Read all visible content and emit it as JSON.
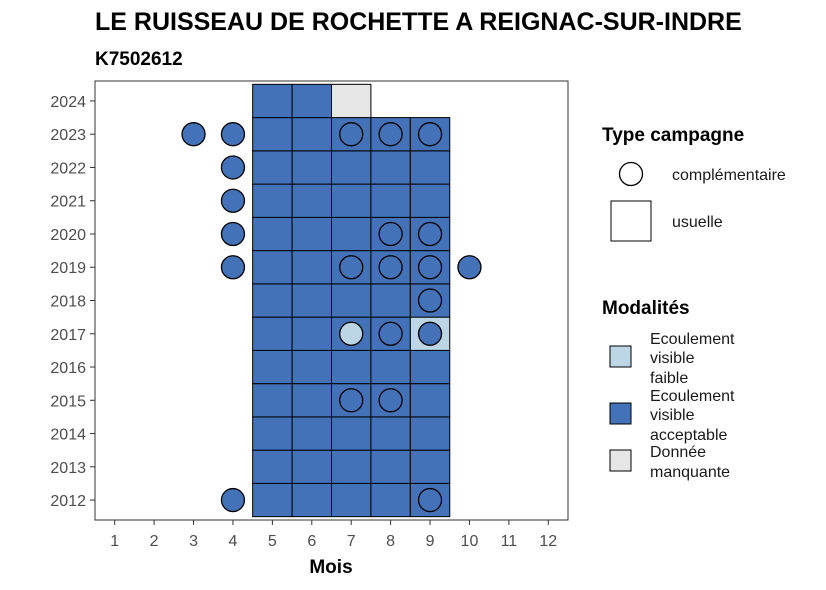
{
  "chart_data": {
    "type": "heatmap",
    "title": "LE RUISSEAU DE ROCHETTE A REIGNAC-SUR-INDRE",
    "subtitle": "K7502612",
    "xlabel": "Mois",
    "ylabel": "",
    "x_ticks": [
      1,
      2,
      3,
      4,
      5,
      6,
      7,
      8,
      9,
      10,
      11,
      12
    ],
    "y_ticks": [
      2012,
      2013,
      2014,
      2015,
      2016,
      2017,
      2018,
      2019,
      2020,
      2021,
      2022,
      2023,
      2024
    ],
    "xlim": [
      0.5,
      12.5
    ],
    "ylim": [
      2011.4,
      2024.6
    ],
    "grid": false,
    "colors": {
      "Ecoulement visible faible": "#bcd6e6",
      "Ecoulement visible acceptable": "#4472b8",
      "Donnée manquante": "#e6e6e6"
    },
    "tiles": [
      {
        "year": 2012,
        "month": 5,
        "modalite": "Ecoulement visible acceptable"
      },
      {
        "year": 2012,
        "month": 6,
        "modalite": "Ecoulement visible acceptable"
      },
      {
        "year": 2012,
        "month": 7,
        "modalite": "Ecoulement visible acceptable"
      },
      {
        "year": 2012,
        "month": 8,
        "modalite": "Ecoulement visible acceptable"
      },
      {
        "year": 2012,
        "month": 9,
        "modalite": "Ecoulement visible acceptable"
      },
      {
        "year": 2013,
        "month": 5,
        "modalite": "Ecoulement visible acceptable"
      },
      {
        "year": 2013,
        "month": 6,
        "modalite": "Ecoulement visible acceptable"
      },
      {
        "year": 2013,
        "month": 7,
        "modalite": "Ecoulement visible acceptable"
      },
      {
        "year": 2013,
        "month": 8,
        "modalite": "Ecoulement visible acceptable"
      },
      {
        "year": 2013,
        "month": 9,
        "modalite": "Ecoulement visible acceptable"
      },
      {
        "year": 2014,
        "month": 5,
        "modalite": "Ecoulement visible acceptable"
      },
      {
        "year": 2014,
        "month": 6,
        "modalite": "Ecoulement visible acceptable"
      },
      {
        "year": 2014,
        "month": 7,
        "modalite": "Ecoulement visible acceptable"
      },
      {
        "year": 2014,
        "month": 8,
        "modalite": "Ecoulement visible acceptable"
      },
      {
        "year": 2014,
        "month": 9,
        "modalite": "Ecoulement visible acceptable"
      },
      {
        "year": 2015,
        "month": 5,
        "modalite": "Ecoulement visible acceptable"
      },
      {
        "year": 2015,
        "month": 6,
        "modalite": "Ecoulement visible acceptable"
      },
      {
        "year": 2015,
        "month": 7,
        "modalite": "Ecoulement visible acceptable"
      },
      {
        "year": 2015,
        "month": 8,
        "modalite": "Ecoulement visible acceptable"
      },
      {
        "year": 2015,
        "month": 9,
        "modalite": "Ecoulement visible acceptable"
      },
      {
        "year": 2016,
        "month": 5,
        "modalite": "Ecoulement visible acceptable"
      },
      {
        "year": 2016,
        "month": 6,
        "modalite": "Ecoulement visible acceptable"
      },
      {
        "year": 2016,
        "month": 7,
        "modalite": "Ecoulement visible acceptable"
      },
      {
        "year": 2016,
        "month": 8,
        "modalite": "Ecoulement visible acceptable"
      },
      {
        "year": 2016,
        "month": 9,
        "modalite": "Ecoulement visible acceptable"
      },
      {
        "year": 2017,
        "month": 5,
        "modalite": "Ecoulement visible acceptable"
      },
      {
        "year": 2017,
        "month": 6,
        "modalite": "Ecoulement visible acceptable"
      },
      {
        "year": 2017,
        "month": 7,
        "modalite": "Ecoulement visible acceptable"
      },
      {
        "year": 2017,
        "month": 8,
        "modalite": "Ecoulement visible acceptable"
      },
      {
        "year": 2017,
        "month": 9,
        "modalite": "Ecoulement visible faible"
      },
      {
        "year": 2018,
        "month": 5,
        "modalite": "Ecoulement visible acceptable"
      },
      {
        "year": 2018,
        "month": 6,
        "modalite": "Ecoulement visible acceptable"
      },
      {
        "year": 2018,
        "month": 7,
        "modalite": "Ecoulement visible acceptable"
      },
      {
        "year": 2018,
        "month": 8,
        "modalite": "Ecoulement visible acceptable"
      },
      {
        "year": 2018,
        "month": 9,
        "modalite": "Ecoulement visible acceptable"
      },
      {
        "year": 2019,
        "month": 5,
        "modalite": "Ecoulement visible acceptable"
      },
      {
        "year": 2019,
        "month": 6,
        "modalite": "Ecoulement visible acceptable"
      },
      {
        "year": 2019,
        "month": 7,
        "modalite": "Ecoulement visible acceptable"
      },
      {
        "year": 2019,
        "month": 8,
        "modalite": "Ecoulement visible acceptable"
      },
      {
        "year": 2019,
        "month": 9,
        "modalite": "Ecoulement visible acceptable"
      },
      {
        "year": 2020,
        "month": 5,
        "modalite": "Ecoulement visible acceptable"
      },
      {
        "year": 2020,
        "month": 6,
        "modalite": "Ecoulement visible acceptable"
      },
      {
        "year": 2020,
        "month": 7,
        "modalite": "Ecoulement visible acceptable"
      },
      {
        "year": 2020,
        "month": 8,
        "modalite": "Ecoulement visible acceptable"
      },
      {
        "year": 2020,
        "month": 9,
        "modalite": "Ecoulement visible acceptable"
      },
      {
        "year": 2021,
        "month": 5,
        "modalite": "Ecoulement visible acceptable"
      },
      {
        "year": 2021,
        "month": 6,
        "modalite": "Ecoulement visible acceptable"
      },
      {
        "year": 2021,
        "month": 7,
        "modalite": "Ecoulement visible acceptable"
      },
      {
        "year": 2021,
        "month": 8,
        "modalite": "Ecoulement visible acceptable"
      },
      {
        "year": 2021,
        "month": 9,
        "modalite": "Ecoulement visible acceptable"
      },
      {
        "year": 2022,
        "month": 5,
        "modalite": "Ecoulement visible acceptable"
      },
      {
        "year": 2022,
        "month": 6,
        "modalite": "Ecoulement visible acceptable"
      },
      {
        "year": 2022,
        "month": 7,
        "modalite": "Ecoulement visible acceptable"
      },
      {
        "year": 2022,
        "month": 8,
        "modalite": "Ecoulement visible acceptable"
      },
      {
        "year": 2022,
        "month": 9,
        "modalite": "Ecoulement visible acceptable"
      },
      {
        "year": 2023,
        "month": 5,
        "modalite": "Ecoulement visible acceptable"
      },
      {
        "year": 2023,
        "month": 6,
        "modalite": "Ecoulement visible acceptable"
      },
      {
        "year": 2023,
        "month": 7,
        "modalite": "Ecoulement visible acceptable"
      },
      {
        "year": 2023,
        "month": 8,
        "modalite": "Ecoulement visible acceptable"
      },
      {
        "year": 2023,
        "month": 9,
        "modalite": "Ecoulement visible acceptable"
      },
      {
        "year": 2024,
        "month": 5,
        "modalite": "Ecoulement visible acceptable"
      },
      {
        "year": 2024,
        "month": 6,
        "modalite": "Ecoulement visible acceptable"
      },
      {
        "year": 2024,
        "month": 7,
        "modalite": "Donnée manquante"
      }
    ],
    "points": [
      {
        "year": 2023,
        "month": 3,
        "modalite": "Ecoulement visible acceptable"
      },
      {
        "year": 2023,
        "month": 4,
        "modalite": "Ecoulement visible acceptable"
      },
      {
        "year": 2023,
        "month": 7,
        "modalite": "Ecoulement visible acceptable"
      },
      {
        "year": 2023,
        "month": 8,
        "modalite": "Ecoulement visible acceptable"
      },
      {
        "year": 2023,
        "month": 9,
        "modalite": "Ecoulement visible acceptable"
      },
      {
        "year": 2022,
        "month": 4,
        "modalite": "Ecoulement visible acceptable"
      },
      {
        "year": 2021,
        "month": 4,
        "modalite": "Ecoulement visible acceptable"
      },
      {
        "year": 2020,
        "month": 4,
        "modalite": "Ecoulement visible acceptable"
      },
      {
        "year": 2020,
        "month": 8,
        "modalite": "Ecoulement visible acceptable"
      },
      {
        "year": 2020,
        "month": 9,
        "modalite": "Ecoulement visible acceptable"
      },
      {
        "year": 2019,
        "month": 4,
        "modalite": "Ecoulement visible acceptable"
      },
      {
        "year": 2019,
        "month": 7,
        "modalite": "Ecoulement visible acceptable"
      },
      {
        "year": 2019,
        "month": 8,
        "modalite": "Ecoulement visible acceptable"
      },
      {
        "year": 2019,
        "month": 9,
        "modalite": "Ecoulement visible acceptable"
      },
      {
        "year": 2019,
        "month": 10,
        "modalite": "Ecoulement visible acceptable"
      },
      {
        "year": 2018,
        "month": 9,
        "modalite": "Ecoulement visible acceptable"
      },
      {
        "year": 2017,
        "month": 7,
        "modalite": "Ecoulement visible faible"
      },
      {
        "year": 2017,
        "month": 8,
        "modalite": "Ecoulement visible acceptable"
      },
      {
        "year": 2017,
        "month": 9,
        "modalite": "Ecoulement visible acceptable"
      },
      {
        "year": 2015,
        "month": 7,
        "modalite": "Ecoulement visible acceptable"
      },
      {
        "year": 2015,
        "month": 8,
        "modalite": "Ecoulement visible acceptable"
      },
      {
        "year": 2012,
        "month": 4,
        "modalite": "Ecoulement visible acceptable"
      },
      {
        "year": 2012,
        "month": 9,
        "modalite": "Ecoulement visible acceptable"
      }
    ],
    "legend": {
      "placement": "right",
      "type_title": "Type campagne",
      "type_items": [
        {
          "shape": "circle",
          "label": "complémentaire"
        },
        {
          "shape": "square",
          "label": "usuelle"
        }
      ],
      "modalites_title": "Modalités",
      "modalites_items": [
        {
          "key": "Ecoulement visible faible",
          "lines": [
            "Ecoulement",
            "visible",
            "faible"
          ]
        },
        {
          "key": "Ecoulement visible acceptable",
          "lines": [
            "Ecoulement",
            "visible",
            "acceptable"
          ]
        },
        {
          "key": "Donnée manquante",
          "lines": [
            "Donnée",
            "manquante"
          ]
        }
      ]
    }
  }
}
